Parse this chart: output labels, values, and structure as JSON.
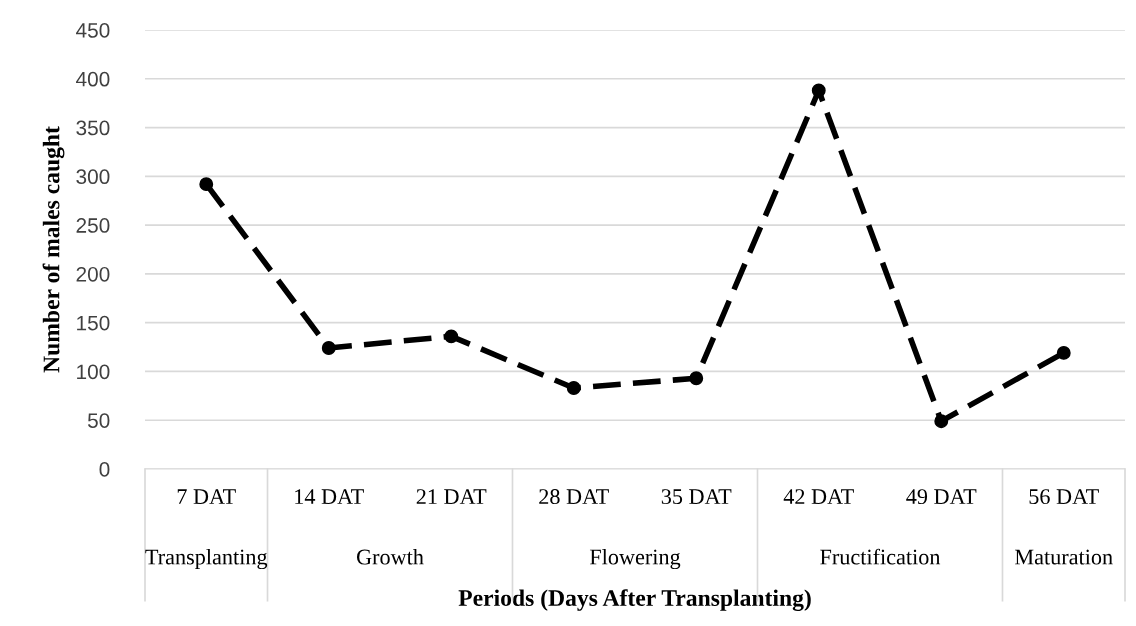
{
  "chart_data": {
    "type": "line",
    "xlabel": "Periods (Days After Transplanting)",
    "ylabel": "Number of males caught",
    "categories": [
      "7 DAT",
      "14 DAT",
      "21 DAT",
      "28 DAT",
      "35 DAT",
      "42 DAT",
      "49 DAT",
      "56 DAT"
    ],
    "series": [
      {
        "color": "#000000",
        "values": [
          292,
          124,
          136,
          83,
          93,
          388,
          49,
          119
        ]
      }
    ],
    "ylim": [
      0,
      450
    ],
    "yticks": [
      0,
      50,
      100,
      150,
      200,
      250,
      300,
      350,
      400,
      450
    ],
    "grid": "y",
    "marker": "circle",
    "line_style": "dashed",
    "annotations": [
      "Transplanting",
      "Growth",
      "Flowering",
      "Fructification",
      "Maturation"
    ]
  }
}
